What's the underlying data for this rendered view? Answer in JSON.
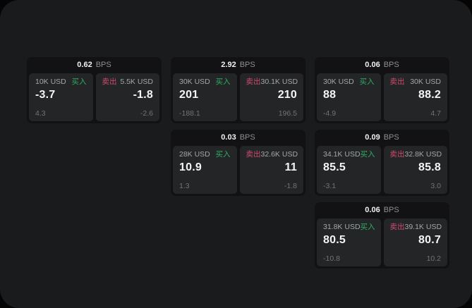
{
  "labels": {
    "bps_suffix": "BPS",
    "buy": "买入",
    "sell": "卖出"
  },
  "colors": {
    "buy_green": "#2fae63",
    "sell_red": "#d14b6e",
    "panel_bg": "#1a1b1c",
    "card_bg": "#121214",
    "tile_bg": "#232527"
  },
  "cards": [
    {
      "bps": "0.62",
      "col": 0,
      "row": 0,
      "buy": {
        "amount": "10K USD",
        "value": "-3.7",
        "delta": "4.3"
      },
      "sell": {
        "amount": "5.5K USD",
        "value": "-1.8",
        "delta": "-2.6"
      }
    },
    {
      "bps": "2.92",
      "col": 1,
      "row": 0,
      "buy": {
        "amount": "30K USD",
        "value": "201",
        "delta": "-188.1"
      },
      "sell": {
        "amount": "30.1K USD",
        "value": "210",
        "delta": "196.5"
      }
    },
    {
      "bps": "0.06",
      "col": 2,
      "row": 0,
      "buy": {
        "amount": "30K USD",
        "value": "88",
        "delta": "-4.9"
      },
      "sell": {
        "amount": "30K USD",
        "value": "88.2",
        "delta": "4.7"
      }
    },
    {
      "bps": "0.03",
      "col": 1,
      "row": 1,
      "buy": {
        "amount": "28K USD",
        "value": "10.9",
        "delta": "1.3"
      },
      "sell": {
        "amount": "32.6K USD",
        "value": "11",
        "delta": "-1.8"
      }
    },
    {
      "bps": "0.09",
      "col": 2,
      "row": 1,
      "buy": {
        "amount": "34.1K USD",
        "value": "85.5",
        "delta": "-3.1"
      },
      "sell": {
        "amount": "32.8K USD",
        "value": "85.8",
        "delta": "3.0"
      }
    },
    {
      "bps": "0.06",
      "col": 2,
      "row": 2,
      "buy": {
        "amount": "31.8K USD",
        "value": "80.5",
        "delta": "-10.8"
      },
      "sell": {
        "amount": "39.1K USD",
        "value": "80.7",
        "delta": "10.2"
      }
    }
  ]
}
